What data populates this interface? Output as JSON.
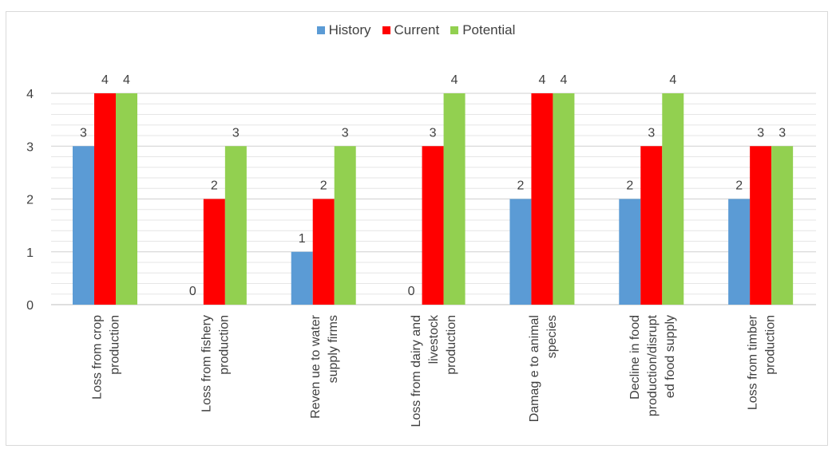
{
  "chart_data": {
    "type": "bar",
    "title": "",
    "xlabel": "",
    "ylabel": "",
    "ylim": [
      0,
      4
    ],
    "yticks": [
      "0",
      "1",
      "2",
      "3",
      "4"
    ],
    "grid": true,
    "legend_position": "top-center",
    "categories": [
      [
        "Loss from crop",
        "production"
      ],
      [
        "Loss from fishery",
        "production"
      ],
      [
        "Reven ue to water",
        "supply firms"
      ],
      [
        "Loss from dairy and",
        "livestock",
        "production"
      ],
      [
        "Damag e to animal",
        "species"
      ],
      [
        "Decline in food",
        "production/disrupt",
        "ed food supply"
      ],
      [
        "Loss from timber",
        "production"
      ]
    ],
    "series": [
      {
        "name": "History",
        "color": "#5b9bd5",
        "values": [
          3,
          0,
          1,
          0,
          2,
          2,
          2
        ]
      },
      {
        "name": "Current",
        "color": "#ff0000",
        "values": [
          4,
          2,
          2,
          3,
          4,
          3,
          3
        ]
      },
      {
        "name": "Potential",
        "color": "#92d050",
        "values": [
          4,
          3,
          3,
          4,
          4,
          4,
          3
        ]
      }
    ]
  }
}
